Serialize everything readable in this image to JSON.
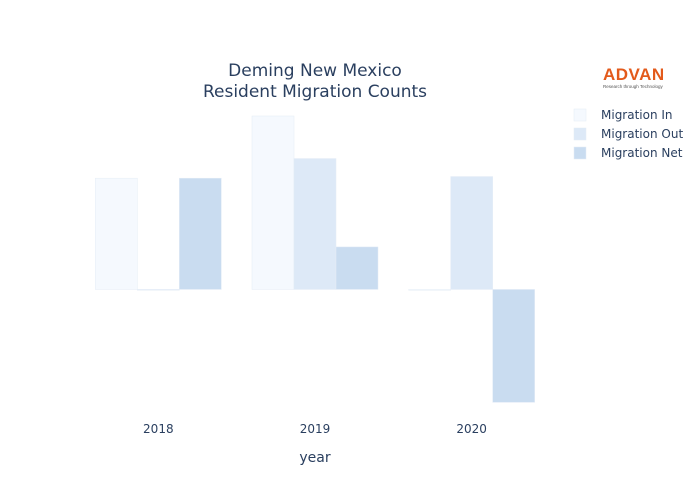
{
  "logo": {
    "wordmark": "ADVAN",
    "tagline": "Research through Technology"
  },
  "chart_data": {
    "type": "bar",
    "title_lines": [
      "Deming New Mexico",
      "Resident Migration Counts"
    ],
    "xlabel": "year",
    "ylabel": "",
    "categories": [
      "2018",
      "2019",
      "2020"
    ],
    "series": [
      {
        "name": "Migration In",
        "color": "#f5f9fe",
        "values": [
          34,
          53,
          0
        ]
      },
      {
        "name": "Migration Out",
        "color": "#dde9f7",
        "values": [
          0,
          40,
          34.5
        ]
      },
      {
        "name": "Migration Net",
        "color": "#c9dcf0",
        "values": [
          34,
          13,
          -34.5
        ]
      }
    ],
    "ylim": [
      -35,
      53
    ],
    "grid": false,
    "show_y_ticks": false,
    "legend_position": "top-right"
  }
}
